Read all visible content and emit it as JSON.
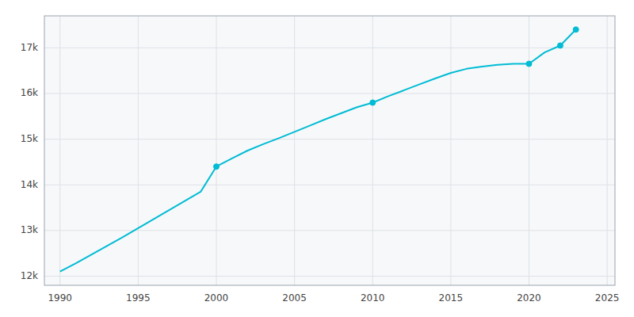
{
  "chart_data": {
    "type": "line",
    "x": [
      1990,
      1991,
      1992,
      1993,
      1994,
      1995,
      1996,
      1997,
      1998,
      1999,
      2000,
      2001,
      2002,
      2003,
      2004,
      2005,
      2006,
      2007,
      2008,
      2009,
      2010,
      2011,
      2012,
      2013,
      2014,
      2015,
      2016,
      2017,
      2018,
      2019,
      2020,
      2021,
      2022,
      2023
    ],
    "series": [
      {
        "type": "line",
        "color": "#00bcd4",
        "line_style": "solid",
        "values": [
          12100,
          12280,
          12470,
          12660,
          12850,
          13050,
          13250,
          13450,
          13650,
          13850,
          14400,
          14580,
          14750,
          14890,
          15020,
          15160,
          15300,
          15440,
          15570,
          15700,
          15800,
          15940,
          16070,
          16200,
          16330,
          16450,
          16540,
          16590,
          16630,
          16650,
          16650,
          16900,
          17050,
          17400
        ]
      },
      {
        "type": "scatter",
        "color": "#00bcd4",
        "marker": "circle",
        "line_style": "none",
        "x": [
          2000,
          2010,
          2020,
          2022,
          2023
        ],
        "values": [
          14400,
          15800,
          16650,
          17050,
          17400
        ]
      }
    ],
    "xlim": [
      1989,
      2025.5
    ],
    "xticks": [
      1990,
      1995,
      2000,
      2005,
      2010,
      2015,
      2020,
      2025
    ],
    "ylim": [
      11800,
      17700
    ],
    "yticks": [
      {
        "value": 12000,
        "label": "12k"
      },
      {
        "value": 13000,
        "label": "13k"
      },
      {
        "value": 14000,
        "label": "14k"
      },
      {
        "value": 15000,
        "label": "15k"
      },
      {
        "value": 16000,
        "label": "16k"
      },
      {
        "value": 17000,
        "label": "17k"
      }
    ],
    "grid": true
  }
}
